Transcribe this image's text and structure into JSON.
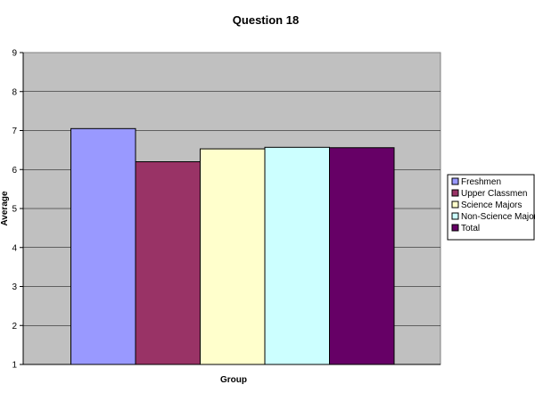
{
  "chart_data": {
    "type": "bar",
    "title": "Question 18",
    "xlabel": "Group",
    "ylabel": "Average",
    "ylim": [
      1,
      9
    ],
    "yticks": [
      "1",
      "2",
      "3",
      "4",
      "5",
      "6",
      "7",
      "8",
      "9"
    ],
    "grid": true,
    "legend_position": "right",
    "plot_background": "#c0c0c0",
    "series": [
      {
        "name": "Freshmen",
        "value": 7.05,
        "color": "#9999ff"
      },
      {
        "name": "Upper Classmen",
        "value": 6.2,
        "color": "#993366"
      },
      {
        "name": "Science Majors",
        "value": 6.53,
        "color": "#ffffcc"
      },
      {
        "name": "Non-Science Majors",
        "value": 6.57,
        "color": "#ccffff"
      },
      {
        "name": "Total",
        "value": 6.56,
        "color": "#660066"
      }
    ]
  }
}
